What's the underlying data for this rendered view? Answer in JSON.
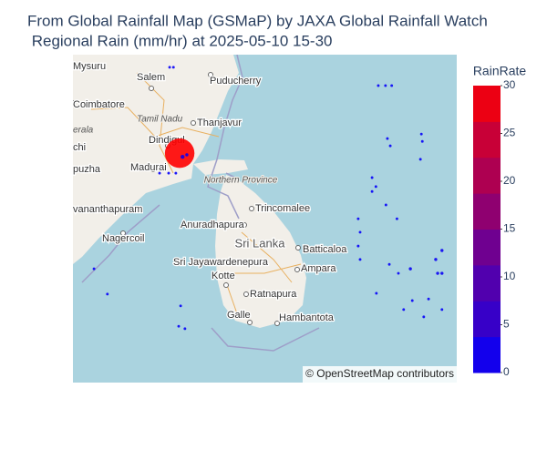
{
  "chart_data": {
    "type": "scattermap",
    "title": [
      "From Global Rainfall Map (GSMaP) by JAXA Global Rainfall Watch",
      " Regional Rain (mm/hr) at 2025-05-10 15-30"
    ],
    "lon": [
      78.28,
      78.36,
      82.64,
      82.79,
      82.92,
      82.83,
      82.89,
      83.54,
      83.56,
      83.52,
      78.49,
      78.55,
      78.64,
      78.07,
      78.26,
      78.41,
      82.51,
      82.59,
      82.51,
      82.8,
      83.03,
      82.22,
      82.26,
      82.22,
      82.26,
      82.87,
      83.06,
      83.31,
      83.84,
      83.97,
      83.97,
      83.88,
      82.6,
      83.35,
      83.69,
      83.17,
      83.59,
      83.97,
      76.98,
      78.51,
      78.47,
      78.6,
      76.7
    ],
    "lat": [
      12.29,
      12.29,
      11.84,
      11.84,
      11.84,
      10.54,
      10.36,
      10.65,
      10.47,
      10.03,
      10.18,
      10.09,
      10.14,
      9.69,
      9.69,
      9.69,
      9.58,
      9.36,
      9.24,
      8.91,
      8.57,
      8.57,
      8.24,
      7.9,
      7.57,
      7.45,
      7.23,
      7.34,
      7.57,
      7.79,
      7.23,
      7.23,
      6.74,
      6.56,
      6.6,
      6.34,
      6.16,
      6.34,
      6.72,
      6.43,
      5.93,
      5.87,
      7.34
    ],
    "values": [
      0.5,
      0.5,
      0.5,
      0.5,
      0.5,
      0.5,
      0.5,
      0.5,
      0.5,
      0.5,
      30,
      2,
      1,
      0.5,
      0.5,
      0.5,
      0.5,
      0.5,
      0.5,
      0.5,
      0.5,
      0.5,
      0.5,
      0.5,
      0.5,
      0.5,
      0.5,
      1,
      1,
      1,
      1,
      1,
      0.5,
      0.5,
      0.5,
      0.5,
      0.5,
      0.5,
      0.5,
      0.5,
      0.5,
      0.5,
      0.5
    ],
    "colorbar_title": "RainRate",
    "colorscale": [
      "#0000ff",
      "#3300cc",
      "#5500aa",
      "#7f0080",
      "#aa0055",
      "#cc0033",
      "#ff0000"
    ],
    "clim": [
      0,
      30
    ],
    "cticks": [
      0,
      5,
      10,
      15,
      20,
      25,
      30
    ],
    "places": [
      "Mysuru",
      "Salem",
      "Puducherry",
      "Coimbatore",
      "Tamil Nadu",
      "Thanjavur",
      "erala",
      "Dindigul",
      "chi",
      "Madurai",
      "puzha",
      "Northern Province",
      "Trincomalee",
      "Anuradhapura",
      "vananthapuram",
      "Sri Lanka",
      "Nagercoil",
      "Batticaloa",
      "Ampara",
      "Sri Jayawardenepura",
      "Kotte",
      "Ratnapura",
      "Galle",
      "Hambantota"
    ],
    "attribution": "© OpenStreetMap contributors"
  }
}
